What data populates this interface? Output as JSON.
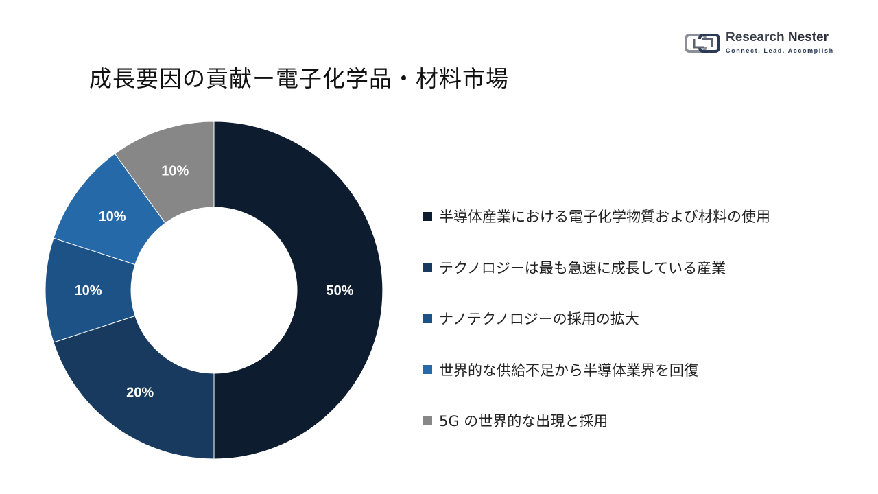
{
  "title": "成長要因の貢献ー電子化学品・材料市場",
  "logo": {
    "brand_part1": "Research",
    "brand_part2": "Nester",
    "tagline": "Connect. Lead. Accomplish"
  },
  "chart_data": {
    "type": "pie",
    "donut": true,
    "title": "成長要因の貢献ー電子化学品・材料市場",
    "series": [
      {
        "name": "半導体産業における電子化学物質および材料の使用",
        "value": 50,
        "label": "50%",
        "color": "#0d1c2e"
      },
      {
        "name": "テクノロジーは最も急速に成長している産業",
        "value": 20,
        "label": "20%",
        "color": "#173a5e"
      },
      {
        "name": "ナノテクノロジーの採用の拡大",
        "value": 10,
        "label": "10%",
        "color": "#1d5286"
      },
      {
        "name": "世界的な供給不足から半導体業界を回復",
        "value": 10,
        "label": "10%",
        "color": "#2569a8"
      },
      {
        "name": "5G の世界的な出現と採用",
        "value": 10,
        "label": "10%",
        "color": "#878787"
      }
    ],
    "legend_position": "right"
  }
}
